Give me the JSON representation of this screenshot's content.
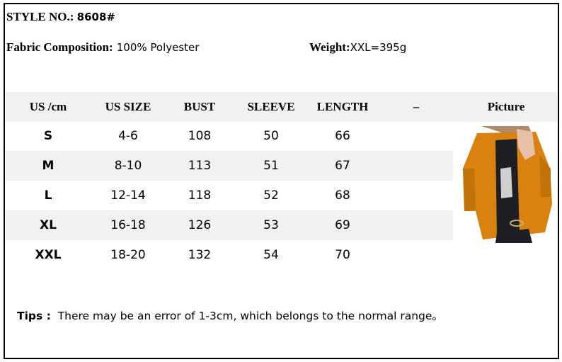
{
  "style_label": "STYLE NO.:",
  "style_no": "8608#",
  "fabric_label": "Fabric Composition:",
  "fabric_value": "100% Polyester",
  "weight_label": "Weight:",
  "weight_value": "XXL=395g",
  "table": {
    "headers": [
      "US /cm",
      "US SIZE",
      "BUST",
      "SLEEVE",
      "LENGTH",
      "–",
      "Picture"
    ],
    "rows": [
      [
        "S",
        "4-6",
        "108",
        "50",
        "66"
      ],
      [
        "M",
        "8-10",
        "113",
        "51",
        "67"
      ],
      [
        "L",
        "12-14",
        "118",
        "52",
        "68"
      ],
      [
        "XL",
        "16-18",
        "126",
        "53",
        "69"
      ],
      [
        "XXL",
        "18-20",
        "132",
        "54",
        "70"
      ]
    ]
  },
  "tips_label": "Tips :",
  "tips_text": "There may be an error of 1-3cm, which belongs to the normal range。",
  "colors": {
    "row_alt": "#f1f1f1",
    "jacket": "#d9820f"
  }
}
